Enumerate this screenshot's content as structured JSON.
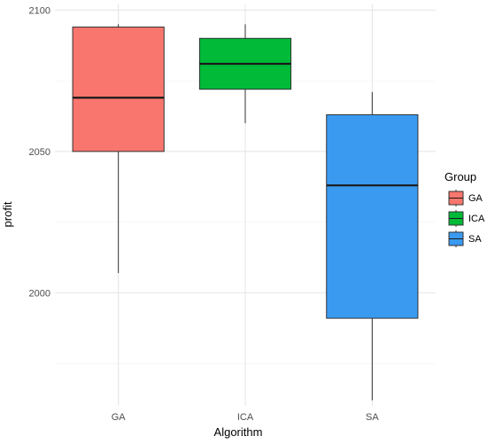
{
  "chart_data": {
    "type": "box",
    "title": "",
    "xlabel": "Algorithm",
    "ylabel": "profit",
    "categories": [
      "GA",
      "ICA",
      "SA"
    ],
    "ylim": [
      1960,
      2102
    ],
    "yticks": [
      2000,
      2050,
      2100
    ],
    "grid": true,
    "legend": {
      "title": "Group",
      "position": "right",
      "entries": [
        "GA",
        "ICA",
        "SA"
      ]
    },
    "series": [
      {
        "name": "GA",
        "color": "#F8766D",
        "whisker_low": 2007,
        "q1": 2050,
        "median": 2069,
        "q3": 2094,
        "whisker_high": 2095
      },
      {
        "name": "ICA",
        "color": "#00BA38",
        "whisker_low": 2060,
        "q1": 2072,
        "median": 2081,
        "q3": 2090,
        "whisker_high": 2095
      },
      {
        "name": "SA",
        "color": "#3A9AF0",
        "whisker_low": 1962,
        "q1": 1991,
        "median": 2038,
        "q3": 2063,
        "whisker_high": 2071
      }
    ]
  }
}
